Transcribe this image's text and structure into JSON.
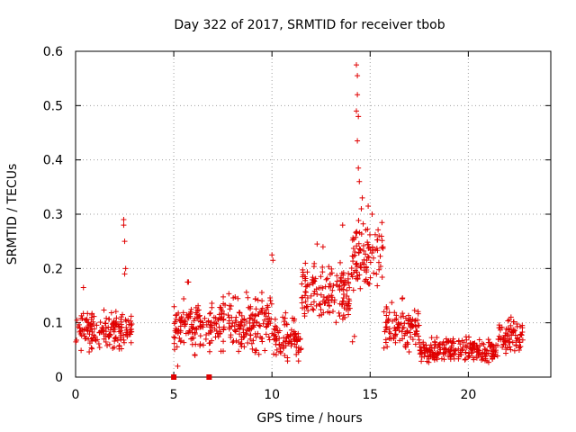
{
  "colors": {
    "series": "#e00000",
    "grid": "#a0a0a0",
    "axis": "#000000"
  },
  "chart_data": {
    "type": "scatter",
    "title": "Day 322 of 2017, SRMTID for receiver tbob",
    "xlabel": "GPS time / hours",
    "ylabel": "SRMTID / TECUs",
    "xlim": [
      0,
      24.2
    ],
    "ylim": [
      0,
      0.6
    ],
    "x_ticks": [
      0,
      5,
      10,
      15,
      20
    ],
    "y_ticks": [
      0,
      0.1,
      0.2,
      0.3,
      0.4,
      0.5,
      0.6
    ],
    "x_tick_labels": [
      "0",
      "5",
      "10",
      "15",
      "20"
    ],
    "y_tick_labels": [
      "0",
      "0.1",
      "0.2",
      "0.3",
      "0.4",
      "0.5",
      "0.6"
    ],
    "grid": true,
    "marker": "plus",
    "series": [
      {
        "name": "SRMTID",
        "segments": [
          {
            "start": 0.0,
            "end": 2.9,
            "mean": 0.085,
            "spread": 0.03
          },
          {
            "start": 5.0,
            "end": 7.0,
            "mean": 0.095,
            "spread": 0.04
          },
          {
            "start": 7.0,
            "end": 10.0,
            "mean": 0.1,
            "spread": 0.045
          },
          {
            "start": 10.0,
            "end": 11.5,
            "mean": 0.07,
            "spread": 0.035
          },
          {
            "start": 11.5,
            "end": 14.0,
            "mean": 0.15,
            "spread": 0.05
          },
          {
            "start": 14.0,
            "end": 15.7,
            "mean": 0.22,
            "spread": 0.06
          },
          {
            "start": 15.7,
            "end": 17.5,
            "mean": 0.09,
            "spread": 0.04
          },
          {
            "start": 17.5,
            "end": 21.5,
            "mean": 0.05,
            "spread": 0.02
          },
          {
            "start": 21.5,
            "end": 22.8,
            "mean": 0.075,
            "spread": 0.03
          }
        ],
        "spikes": [
          {
            "x": 2.45,
            "y": 0.29
          },
          {
            "x": 2.45,
            "y": 0.28
          },
          {
            "x": 2.5,
            "y": 0.25
          },
          {
            "x": 2.55,
            "y": 0.2
          },
          {
            "x": 2.5,
            "y": 0.19
          },
          {
            "x": 0.4,
            "y": 0.165
          },
          {
            "x": 5.7,
            "y": 0.175
          },
          {
            "x": 5.75,
            "y": 0.175
          },
          {
            "x": 10.0,
            "y": 0.225
          },
          {
            "x": 10.05,
            "y": 0.215
          },
          {
            "x": 14.3,
            "y": 0.575
          },
          {
            "x": 14.35,
            "y": 0.555
          },
          {
            "x": 14.35,
            "y": 0.52
          },
          {
            "x": 14.3,
            "y": 0.49
          },
          {
            "x": 14.4,
            "y": 0.48
          },
          {
            "x": 14.35,
            "y": 0.435
          },
          {
            "x": 14.4,
            "y": 0.385
          },
          {
            "x": 14.45,
            "y": 0.36
          },
          {
            "x": 14.6,
            "y": 0.33
          },
          {
            "x": 14.55,
            "y": 0.31
          },
          {
            "x": 14.9,
            "y": 0.315
          },
          {
            "x": 15.1,
            "y": 0.3
          },
          {
            "x": 13.6,
            "y": 0.28
          },
          {
            "x": 12.3,
            "y": 0.245
          },
          {
            "x": 12.6,
            "y": 0.24
          },
          {
            "x": 14.2,
            "y": 0.075
          },
          {
            "x": 14.1,
            "y": 0.065
          },
          {
            "x": 5.2,
            "y": 0.02
          }
        ],
        "square_markers": [
          {
            "x": 5.0,
            "y": 0.0
          },
          {
            "x": 6.8,
            "y": 0.0
          }
        ]
      }
    ]
  }
}
